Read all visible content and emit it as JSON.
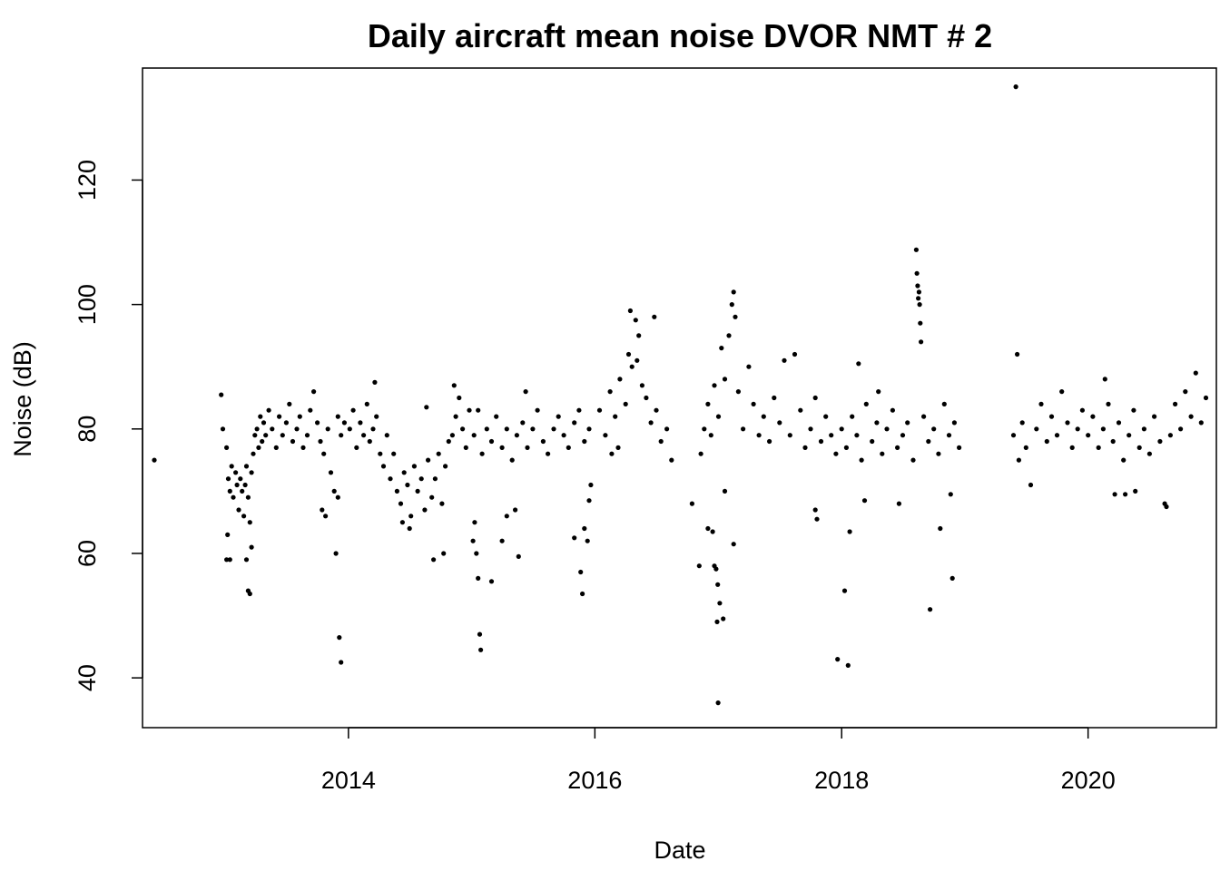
{
  "chart_data": {
    "type": "scatter",
    "title": "Daily aircraft mean noise DVOR NMT # 2",
    "xlabel": "Date",
    "ylabel": "Noise (dB)",
    "xlim": [
      "2012-05-01",
      "2021-01-15"
    ],
    "ylim": [
      32,
      138
    ],
    "x_ticks": [
      {
        "label": "2014",
        "date": "2014-01-01"
      },
      {
        "label": "2016",
        "date": "2016-01-01"
      },
      {
        "label": "2018",
        "date": "2018-01-01"
      },
      {
        "label": "2020",
        "date": "2020-01-01"
      }
    ],
    "y_ticks": [
      40,
      60,
      80,
      100,
      120
    ],
    "grid": false,
    "legend": "none",
    "point_color": "#000000",
    "points": [
      [
        "2012-06-05",
        75
      ],
      [
        "2012-12-20",
        85.5
      ],
      [
        "2012-12-25",
        80
      ],
      [
        "2013-01-05",
        77
      ],
      [
        "2013-01-10",
        72
      ],
      [
        "2013-01-15",
        70
      ],
      [
        "2013-01-20",
        74
      ],
      [
        "2013-01-25",
        69
      ],
      [
        "2013-02-01",
        73
      ],
      [
        "2013-02-05",
        71
      ],
      [
        "2013-02-10",
        67
      ],
      [
        "2013-02-15",
        72
      ],
      [
        "2013-02-20",
        70
      ],
      [
        "2013-02-25",
        66
      ],
      [
        "2013-03-01",
        71
      ],
      [
        "2013-03-05",
        74
      ],
      [
        "2013-03-10",
        69
      ],
      [
        "2013-03-15",
        65
      ],
      [
        "2013-03-20",
        73
      ],
      [
        "2013-03-25",
        76
      ],
      [
        "2013-03-30",
        79
      ],
      [
        "2013-04-05",
        80
      ],
      [
        "2013-04-10",
        77
      ],
      [
        "2013-04-15",
        82
      ],
      [
        "2013-04-20",
        78
      ],
      [
        "2013-04-25",
        81
      ],
      [
        "2013-05-01",
        79
      ],
      [
        "2013-05-10",
        83
      ],
      [
        "2013-05-20",
        80
      ],
      [
        "2013-06-01",
        77
      ],
      [
        "2013-06-10",
        82
      ],
      [
        "2013-06-20",
        79
      ],
      [
        "2013-07-01",
        81
      ],
      [
        "2013-07-10",
        84
      ],
      [
        "2013-07-20",
        78
      ],
      [
        "2013-08-01",
        80
      ],
      [
        "2013-08-10",
        82
      ],
      [
        "2013-08-20",
        77
      ],
      [
        "2013-09-01",
        79
      ],
      [
        "2013-09-10",
        83
      ],
      [
        "2013-09-20",
        86
      ],
      [
        "2013-10-01",
        81
      ],
      [
        "2013-10-10",
        78
      ],
      [
        "2013-10-20",
        76
      ],
      [
        "2013-11-01",
        80
      ],
      [
        "2013-11-10",
        73
      ],
      [
        "2013-11-20",
        70
      ],
      [
        "2013-12-01",
        82
      ],
      [
        "2013-12-10",
        79
      ],
      [
        "2013-12-20",
        81
      ],
      [
        "2013-01-05",
        59
      ],
      [
        "2013-01-15",
        59
      ],
      [
        "2013-01-08",
        63
      ],
      [
        "2013-03-10",
        54
      ],
      [
        "2013-03-15",
        53.5
      ],
      [
        "2013-03-05",
        59
      ],
      [
        "2013-03-20",
        61
      ],
      [
        "2013-10-15",
        67
      ],
      [
        "2013-10-25",
        66
      ],
      [
        "2013-11-25",
        60
      ],
      [
        "2013-12-05",
        46.5
      ],
      [
        "2013-12-10",
        42.5
      ],
      [
        "2013-12-01",
        69
      ],
      [
        "2014-01-05",
        80
      ],
      [
        "2014-01-15",
        83
      ],
      [
        "2014-01-25",
        77
      ],
      [
        "2014-02-05",
        81
      ],
      [
        "2014-02-15",
        79
      ],
      [
        "2014-02-25",
        84
      ],
      [
        "2014-03-05",
        78
      ],
      [
        "2014-03-15",
        80
      ],
      [
        "2014-03-25",
        82
      ],
      [
        "2014-04-05",
        76
      ],
      [
        "2014-04-15",
        74
      ],
      [
        "2014-04-25",
        79
      ],
      [
        "2014-05-05",
        72
      ],
      [
        "2014-05-15",
        76
      ],
      [
        "2014-05-25",
        70
      ],
      [
        "2014-06-05",
        68
      ],
      [
        "2014-06-15",
        73
      ],
      [
        "2014-06-25",
        71
      ],
      [
        "2014-07-05",
        66
      ],
      [
        "2014-07-15",
        74
      ],
      [
        "2014-07-25",
        70
      ],
      [
        "2014-08-05",
        72
      ],
      [
        "2014-08-15",
        67
      ],
      [
        "2014-08-25",
        75
      ],
      [
        "2014-09-05",
        69
      ],
      [
        "2014-09-15",
        72
      ],
      [
        "2014-09-25",
        76
      ],
      [
        "2014-10-05",
        68
      ],
      [
        "2014-10-15",
        74
      ],
      [
        "2014-10-25",
        78
      ],
      [
        "2014-11-05",
        79
      ],
      [
        "2014-11-15",
        82
      ],
      [
        "2014-11-25",
        85
      ],
      [
        "2014-12-05",
        80
      ],
      [
        "2014-12-15",
        77
      ],
      [
        "2014-12-25",
        83
      ],
      [
        "2014-03-20",
        87.5
      ],
      [
        "2014-06-10",
        65
      ],
      [
        "2014-07-01",
        64
      ],
      [
        "2014-08-20",
        83.5
      ],
      [
        "2014-09-10",
        59
      ],
      [
        "2014-10-10",
        60
      ],
      [
        "2014-11-10",
        87
      ],
      [
        "2015-01-05",
        62
      ],
      [
        "2015-01-10",
        65
      ],
      [
        "2015-01-15",
        60
      ],
      [
        "2015-01-20",
        56
      ],
      [
        "2015-01-25",
        47
      ],
      [
        "2015-01-28",
        44.5
      ],
      [
        "2015-03-01",
        55.5
      ],
      [
        "2015-04-01",
        62
      ],
      [
        "2015-04-15",
        66
      ],
      [
        "2015-05-10",
        67
      ],
      [
        "2015-05-20",
        59.5
      ],
      [
        "2015-01-08",
        79
      ],
      [
        "2015-01-20",
        83
      ],
      [
        "2015-02-01",
        76
      ],
      [
        "2015-02-15",
        80
      ],
      [
        "2015-03-01",
        78
      ],
      [
        "2015-03-15",
        82
      ],
      [
        "2015-04-01",
        77
      ],
      [
        "2015-04-15",
        80
      ],
      [
        "2015-05-01",
        75
      ],
      [
        "2015-05-15",
        79
      ],
      [
        "2015-06-01",
        81
      ],
      [
        "2015-06-15",
        77
      ],
      [
        "2015-07-01",
        80
      ],
      [
        "2015-07-15",
        83
      ],
      [
        "2015-08-01",
        78
      ],
      [
        "2015-08-15",
        76
      ],
      [
        "2015-09-01",
        80
      ],
      [
        "2015-09-15",
        82
      ],
      [
        "2015-10-01",
        79
      ],
      [
        "2015-10-15",
        77
      ],
      [
        "2015-11-01",
        81
      ],
      [
        "2015-11-15",
        83
      ],
      [
        "2015-12-01",
        78
      ],
      [
        "2015-12-15",
        80
      ],
      [
        "2015-06-10",
        86
      ],
      [
        "2015-11-01",
        62.5
      ],
      [
        "2015-11-20",
        57
      ],
      [
        "2015-11-25",
        53.5
      ],
      [
        "2015-12-01",
        64
      ],
      [
        "2015-12-10",
        62
      ],
      [
        "2015-12-15",
        68.5
      ],
      [
        "2015-12-20",
        71
      ],
      [
        "2016-01-15",
        83
      ],
      [
        "2016-02-01",
        79
      ],
      [
        "2016-02-15",
        86
      ],
      [
        "2016-03-01",
        82
      ],
      [
        "2016-03-15",
        88
      ],
      [
        "2016-04-01",
        84
      ],
      [
        "2016-04-10",
        92
      ],
      [
        "2016-04-15",
        99
      ],
      [
        "2016-04-20",
        90
      ],
      [
        "2016-05-01",
        97.5
      ],
      [
        "2016-05-10",
        95
      ],
      [
        "2016-05-20",
        87
      ],
      [
        "2016-06-01",
        85
      ],
      [
        "2016-06-15",
        81
      ],
      [
        "2016-06-25",
        98
      ],
      [
        "2016-07-01",
        83
      ],
      [
        "2016-07-15",
        78
      ],
      [
        "2016-08-01",
        80
      ],
      [
        "2016-08-15",
        75
      ],
      [
        "2016-03-10",
        77
      ],
      [
        "2016-05-05",
        91
      ],
      [
        "2016-02-20",
        76
      ],
      [
        "2016-11-10",
        76
      ],
      [
        "2016-11-20",
        80
      ],
      [
        "2016-12-01",
        84
      ],
      [
        "2016-12-10",
        79
      ],
      [
        "2016-12-20",
        87
      ],
      [
        "2017-01-01",
        82
      ],
      [
        "2017-01-10",
        93
      ],
      [
        "2017-01-20",
        88
      ],
      [
        "2017-02-01",
        95
      ],
      [
        "2017-02-10",
        100
      ],
      [
        "2017-02-15",
        102
      ],
      [
        "2017-02-20",
        98
      ],
      [
        "2017-03-01",
        86
      ],
      [
        "2017-03-15",
        80
      ],
      [
        "2017-04-01",
        90
      ],
      [
        "2017-04-15",
        84
      ],
      [
        "2017-05-01",
        79
      ],
      [
        "2017-05-15",
        82
      ],
      [
        "2017-06-01",
        78
      ],
      [
        "2017-06-15",
        85
      ],
      [
        "2017-07-01",
        81
      ],
      [
        "2017-07-15",
        91
      ],
      [
        "2017-08-01",
        79
      ],
      [
        "2017-08-15",
        92
      ],
      [
        "2017-09-01",
        83
      ],
      [
        "2017-09-15",
        77
      ],
      [
        "2017-10-01",
        80
      ],
      [
        "2017-10-15",
        85
      ],
      [
        "2017-11-01",
        78
      ],
      [
        "2017-11-15",
        82
      ],
      [
        "2017-12-01",
        79
      ],
      [
        "2017-12-15",
        76
      ],
      [
        "2016-10-15",
        68
      ],
      [
        "2016-11-05",
        58
      ],
      [
        "2016-12-01",
        64
      ],
      [
        "2016-12-15",
        63.5
      ],
      [
        "2016-12-20",
        58
      ],
      [
        "2016-12-25",
        57.5
      ],
      [
        "2016-12-30",
        55
      ],
      [
        "2017-01-05",
        52
      ],
      [
        "2016-12-28",
        49
      ],
      [
        "2017-01-15",
        49.5
      ],
      [
        "2016-12-31",
        36
      ],
      [
        "2017-02-15",
        61.5
      ],
      [
        "2017-01-20",
        70
      ],
      [
        "2017-10-15",
        67
      ],
      [
        "2017-10-20",
        65.5
      ],
      [
        "2018-01-01",
        80
      ],
      [
        "2018-01-15",
        77
      ],
      [
        "2018-02-01",
        82
      ],
      [
        "2018-02-15",
        79
      ],
      [
        "2018-03-01",
        75
      ],
      [
        "2018-03-15",
        84
      ],
      [
        "2018-04-01",
        78
      ],
      [
        "2018-04-15",
        81
      ],
      [
        "2018-05-01",
        76
      ],
      [
        "2018-05-15",
        80
      ],
      [
        "2018-06-01",
        83
      ],
      [
        "2018-06-15",
        77
      ],
      [
        "2018-07-01",
        79
      ],
      [
        "2018-07-15",
        81
      ],
      [
        "2018-08-01",
        75
      ],
      [
        "2018-08-10",
        108.8
      ],
      [
        "2018-08-12",
        105
      ],
      [
        "2018-08-14",
        103
      ],
      [
        "2018-08-16",
        101
      ],
      [
        "2018-08-18",
        102
      ],
      [
        "2018-08-20",
        100
      ],
      [
        "2018-08-22",
        97
      ],
      [
        "2018-08-24",
        94
      ],
      [
        "2018-09-01",
        82
      ],
      [
        "2018-09-15",
        78
      ],
      [
        "2018-10-01",
        80
      ],
      [
        "2018-10-15",
        76
      ],
      [
        "2018-11-01",
        84
      ],
      [
        "2018-11-15",
        79
      ],
      [
        "2018-12-01",
        81
      ],
      [
        "2018-12-15",
        77
      ],
      [
        "2018-02-20",
        90.5
      ],
      [
        "2018-04-20",
        86
      ],
      [
        "2017-12-20",
        43
      ],
      [
        "2018-01-20",
        42
      ],
      [
        "2018-01-10",
        54
      ],
      [
        "2018-01-25",
        63.5
      ],
      [
        "2018-03-10",
        68.5
      ],
      [
        "2018-06-20",
        68
      ],
      [
        "2018-09-20",
        51
      ],
      [
        "2018-10-20",
        64
      ],
      [
        "2018-11-20",
        69.5
      ],
      [
        "2018-11-25",
        56
      ],
      [
        "2019-06-01",
        135
      ],
      [
        "2019-06-05",
        92
      ],
      [
        "2019-05-25",
        79
      ],
      [
        "2019-06-10",
        75
      ],
      [
        "2019-06-20",
        81
      ],
      [
        "2019-07-01",
        77
      ],
      [
        "2019-07-15",
        71
      ],
      [
        "2019-08-01",
        80
      ],
      [
        "2019-08-15",
        84
      ],
      [
        "2019-09-01",
        78
      ],
      [
        "2019-09-15",
        82
      ],
      [
        "2019-10-01",
        79
      ],
      [
        "2019-10-15",
        86
      ],
      [
        "2019-11-01",
        81
      ],
      [
        "2019-11-15",
        77
      ],
      [
        "2019-12-01",
        80
      ],
      [
        "2019-12-15",
        83
      ],
      [
        "2020-01-01",
        79
      ],
      [
        "2020-01-15",
        82
      ],
      [
        "2020-02-01",
        77
      ],
      [
        "2020-02-15",
        80
      ],
      [
        "2020-03-01",
        84
      ],
      [
        "2020-03-15",
        78
      ],
      [
        "2020-04-01",
        81
      ],
      [
        "2020-04-15",
        75
      ],
      [
        "2020-05-01",
        79
      ],
      [
        "2020-05-15",
        83
      ],
      [
        "2020-06-01",
        77
      ],
      [
        "2020-06-15",
        80
      ],
      [
        "2020-07-01",
        76
      ],
      [
        "2020-07-15",
        82
      ],
      [
        "2020-08-01",
        78
      ],
      [
        "2020-08-15",
        68
      ],
      [
        "2020-08-20",
        67.5
      ],
      [
        "2020-09-01",
        79
      ],
      [
        "2020-09-15",
        84
      ],
      [
        "2020-10-01",
        80
      ],
      [
        "2020-10-15",
        86
      ],
      [
        "2020-11-01",
        82
      ],
      [
        "2020-11-15",
        89
      ],
      [
        "2020-12-01",
        81
      ],
      [
        "2020-12-15",
        85
      ],
      [
        "2020-03-20",
        69.5
      ],
      [
        "2020-04-20",
        69.5
      ],
      [
        "2020-05-20",
        70
      ],
      [
        "2020-02-20",
        88
      ]
    ]
  }
}
